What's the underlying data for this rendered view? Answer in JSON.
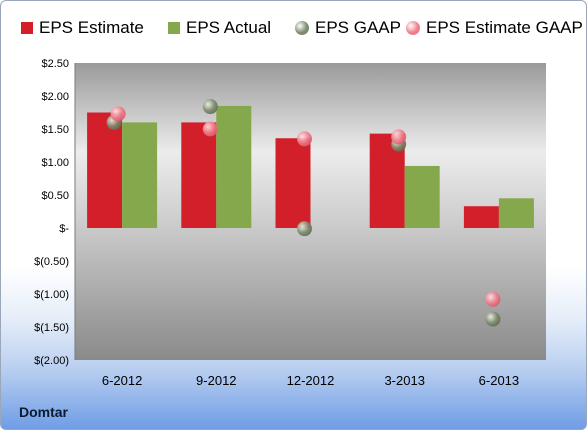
{
  "company": "Domtar",
  "colors": {
    "eps_estimate": "#d21f2a",
    "eps_actual": "#85a84c",
    "eps_gaap": "#7d8b6e",
    "eps_estimate_gaap": "#ef7c8a"
  },
  "chart_data": {
    "type": "bar",
    "categories": [
      "6-2012",
      "9-2012",
      "12-2012",
      "3-2013",
      "6-2013"
    ],
    "series": [
      {
        "name": "EPS Estimate",
        "kind": "bar",
        "values": [
          1.75,
          1.6,
          1.36,
          1.43,
          0.33
        ]
      },
      {
        "name": "EPS Actual",
        "kind": "bar",
        "values": [
          1.6,
          1.85,
          null,
          0.94,
          0.45
        ]
      },
      {
        "name": "EPS GAAP",
        "kind": "point",
        "values": [
          1.6,
          1.84,
          -0.01,
          1.27,
          -1.38
        ]
      },
      {
        "name": "EPS Estimate GAAP",
        "kind": "point",
        "values": [
          1.73,
          1.5,
          1.35,
          1.38,
          -1.08
        ]
      }
    ],
    "ylim": [
      -2.0,
      2.5
    ],
    "yticks": [
      2.5,
      2.0,
      1.5,
      1.0,
      0.5,
      0,
      -0.5,
      -1.0,
      -1.5,
      -2.0
    ],
    "ytick_labels": [
      "$2.50",
      "$2.00",
      "$1.50",
      "$1.00",
      "$0.50",
      "$-",
      "$(0.50)",
      "$(1.00)",
      "$(1.50)",
      "$(2.00)"
    ],
    "legend_position": "top",
    "grid": false
  }
}
